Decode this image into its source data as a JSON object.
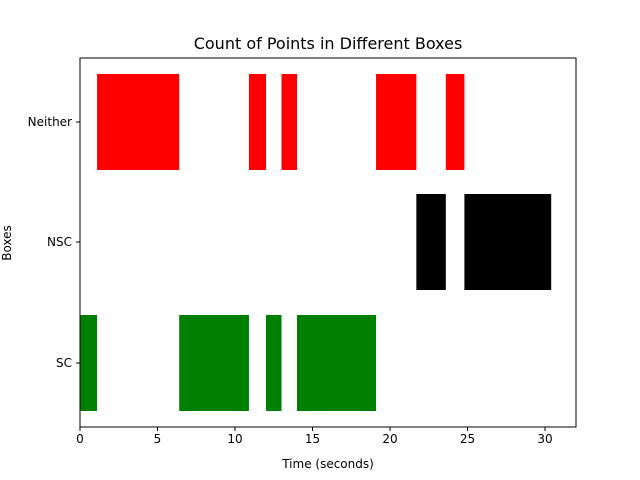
{
  "chart_data": {
    "type": "broken_barh",
    "title": "Count of Points in Different Boxes",
    "xlabel": "Time (seconds)",
    "ylabel": "Boxes",
    "xlim": [
      0,
      32
    ],
    "xticks": [
      0,
      5,
      10,
      15,
      20,
      25,
      30
    ],
    "categories": [
      "SC",
      "NSC",
      "Neither"
    ],
    "series": [
      {
        "name": "SC",
        "color": "#008000",
        "intervals": [
          [
            0.0,
            1.1
          ],
          [
            6.4,
            10.9
          ],
          [
            12.0,
            13.0
          ],
          [
            14.0,
            19.1
          ]
        ]
      },
      {
        "name": "NSC",
        "color": "#000000",
        "intervals": [
          [
            21.7,
            23.6
          ],
          [
            24.8,
            30.4
          ]
        ]
      },
      {
        "name": "Neither",
        "color": "#ff0000",
        "intervals": [
          [
            1.1,
            6.4
          ],
          [
            10.9,
            12.0
          ],
          [
            13.0,
            14.0
          ],
          [
            19.1,
            21.7
          ],
          [
            23.6,
            24.8
          ]
        ]
      }
    ]
  }
}
